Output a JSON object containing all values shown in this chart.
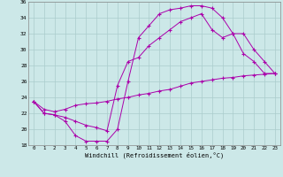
{
  "xlabel": "Windchill (Refroidissement éolien,°C)",
  "xlim": [
    -0.5,
    23.5
  ],
  "ylim": [
    18,
    36
  ],
  "yticks": [
    18,
    20,
    22,
    24,
    26,
    28,
    30,
    32,
    34,
    36
  ],
  "xticks": [
    0,
    1,
    2,
    3,
    4,
    5,
    6,
    7,
    8,
    9,
    10,
    11,
    12,
    13,
    14,
    15,
    16,
    17,
    18,
    19,
    20,
    21,
    22,
    23
  ],
  "bg_color": "#cce8e8",
  "line_color": "#aa00aa",
  "grid_color": "#aacccc",
  "line1_x": [
    0,
    1,
    2,
    3,
    4,
    5,
    6,
    7,
    8,
    9,
    10,
    11,
    12,
    13,
    14,
    15,
    16,
    17,
    18,
    19,
    20,
    21,
    22,
    23
  ],
  "line1_y": [
    23.5,
    22.0,
    21.8,
    21.0,
    19.2,
    18.5,
    18.5,
    18.5,
    20.0,
    26.0,
    31.5,
    33.0,
    34.5,
    35.0,
    35.2,
    35.5,
    35.5,
    35.2,
    34.0,
    32.0,
    29.5,
    28.5,
    27.0,
    27.0
  ],
  "line2_x": [
    0,
    1,
    2,
    3,
    4,
    5,
    6,
    7,
    8,
    9,
    10,
    11,
    12,
    13,
    14,
    15,
    16,
    17,
    18,
    19,
    20,
    21,
    22,
    23
  ],
  "line2_y": [
    23.5,
    22.0,
    21.8,
    21.5,
    21.0,
    20.5,
    20.2,
    19.8,
    25.5,
    28.5,
    29.0,
    30.5,
    31.5,
    32.5,
    33.5,
    34.0,
    34.5,
    32.5,
    31.5,
    32.0,
    32.0,
    30.0,
    28.5,
    27.0
  ],
  "line3_x": [
    0,
    1,
    2,
    3,
    4,
    5,
    6,
    7,
    8,
    9,
    10,
    11,
    12,
    13,
    14,
    15,
    16,
    17,
    18,
    19,
    20,
    21,
    22,
    23
  ],
  "line3_y": [
    23.5,
    22.5,
    22.2,
    22.5,
    23.0,
    23.2,
    23.3,
    23.5,
    23.8,
    24.0,
    24.3,
    24.5,
    24.8,
    25.0,
    25.4,
    25.8,
    26.0,
    26.2,
    26.4,
    26.5,
    26.7,
    26.8,
    26.9,
    27.0
  ],
  "figsize": [
    3.2,
    2.0
  ],
  "dpi": 100
}
